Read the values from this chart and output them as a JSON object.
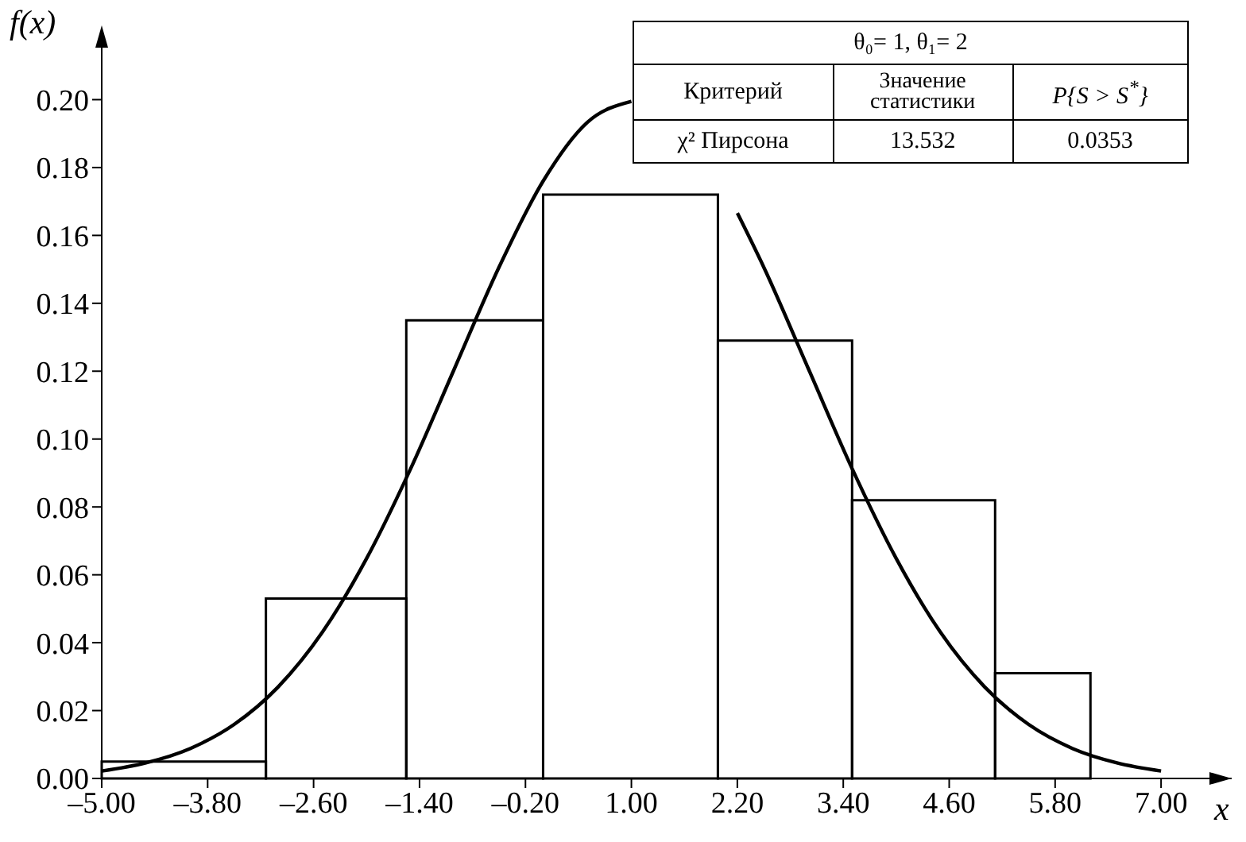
{
  "chart_data": {
    "type": "histogram",
    "xlabel": "x",
    "ylabel": "f(x)",
    "bins": [
      -5.0,
      -3.14,
      -1.55,
      0.0,
      1.98,
      3.5,
      5.12,
      6.2
    ],
    "values": [
      0.005,
      0.053,
      0.135,
      0.172,
      0.129,
      0.082,
      0.031
    ],
    "color": "#000000",
    "series": [
      {
        "type": "line",
        "color": "#000000",
        "x": [
          -5,
          -4.5,
          -4,
          -3.5,
          -3,
          -2.5,
          -2,
          -1.5,
          -1,
          -0.5,
          0,
          0.5,
          1,
          1.5,
          2,
          2.2,
          2.5,
          3,
          3.5,
          4,
          4.5,
          5,
          5.5,
          6,
          6.5,
          7
        ],
        "values": [
          0.0022,
          0.0046,
          0.0088,
          0.0159,
          0.027,
          0.0431,
          0.0648,
          0.0913,
          0.121,
          0.1506,
          0.176,
          0.1933,
          0.1995,
          null,
          null,
          0.1666,
          0.1506,
          0.121,
          0.0913,
          0.0648,
          0.0431,
          0.027,
          0.0159,
          0.0088,
          0.0046,
          0.0022
        ]
      }
    ],
    "xlim": [
      -5,
      7.8
    ],
    "ylim": [
      0,
      0.22
    ],
    "xticks": [
      {
        "value": -5,
        "label": "–5.00"
      },
      {
        "value": -3.8,
        "label": "–3.80"
      },
      {
        "value": -2.6,
        "label": "–2.60"
      },
      {
        "value": -1.4,
        "label": "–1.40"
      },
      {
        "value": -0.2,
        "label": "–0.20"
      },
      {
        "value": 1,
        "label": "1.00"
      },
      {
        "value": 2.2,
        "label": "2.20"
      },
      {
        "value": 3.4,
        "label": "3.40"
      },
      {
        "value": 4.6,
        "label": "4.60"
      },
      {
        "value": 5.8,
        "label": "5.80"
      },
      {
        "value": 7,
        "label": "7.00"
      }
    ],
    "yticks": [
      {
        "value": 0,
        "label": "0.00"
      },
      {
        "value": 0.02,
        "label": "0.02"
      },
      {
        "value": 0.04,
        "label": "0.04"
      },
      {
        "value": 0.06,
        "label": "0.06"
      },
      {
        "value": 0.08,
        "label": "0.08"
      },
      {
        "value": 0.1,
        "label": "0.10"
      },
      {
        "value": 0.12,
        "label": "0.12"
      },
      {
        "value": 0.14,
        "label": "0.14"
      },
      {
        "value": 0.16,
        "label": "0.16"
      },
      {
        "value": 0.18,
        "label": "0.18"
      },
      {
        "value": 0.2,
        "label": "0.20"
      }
    ],
    "marker": "none",
    "line_style": "solid",
    "annotations": [
      "θ₀= 1, θ₁= 2",
      "Критерий",
      "Значение статистики",
      "P{S > S$^{*}$}",
      "χ² Пирсона",
      "13.532",
      "0.0353"
    ]
  }
}
